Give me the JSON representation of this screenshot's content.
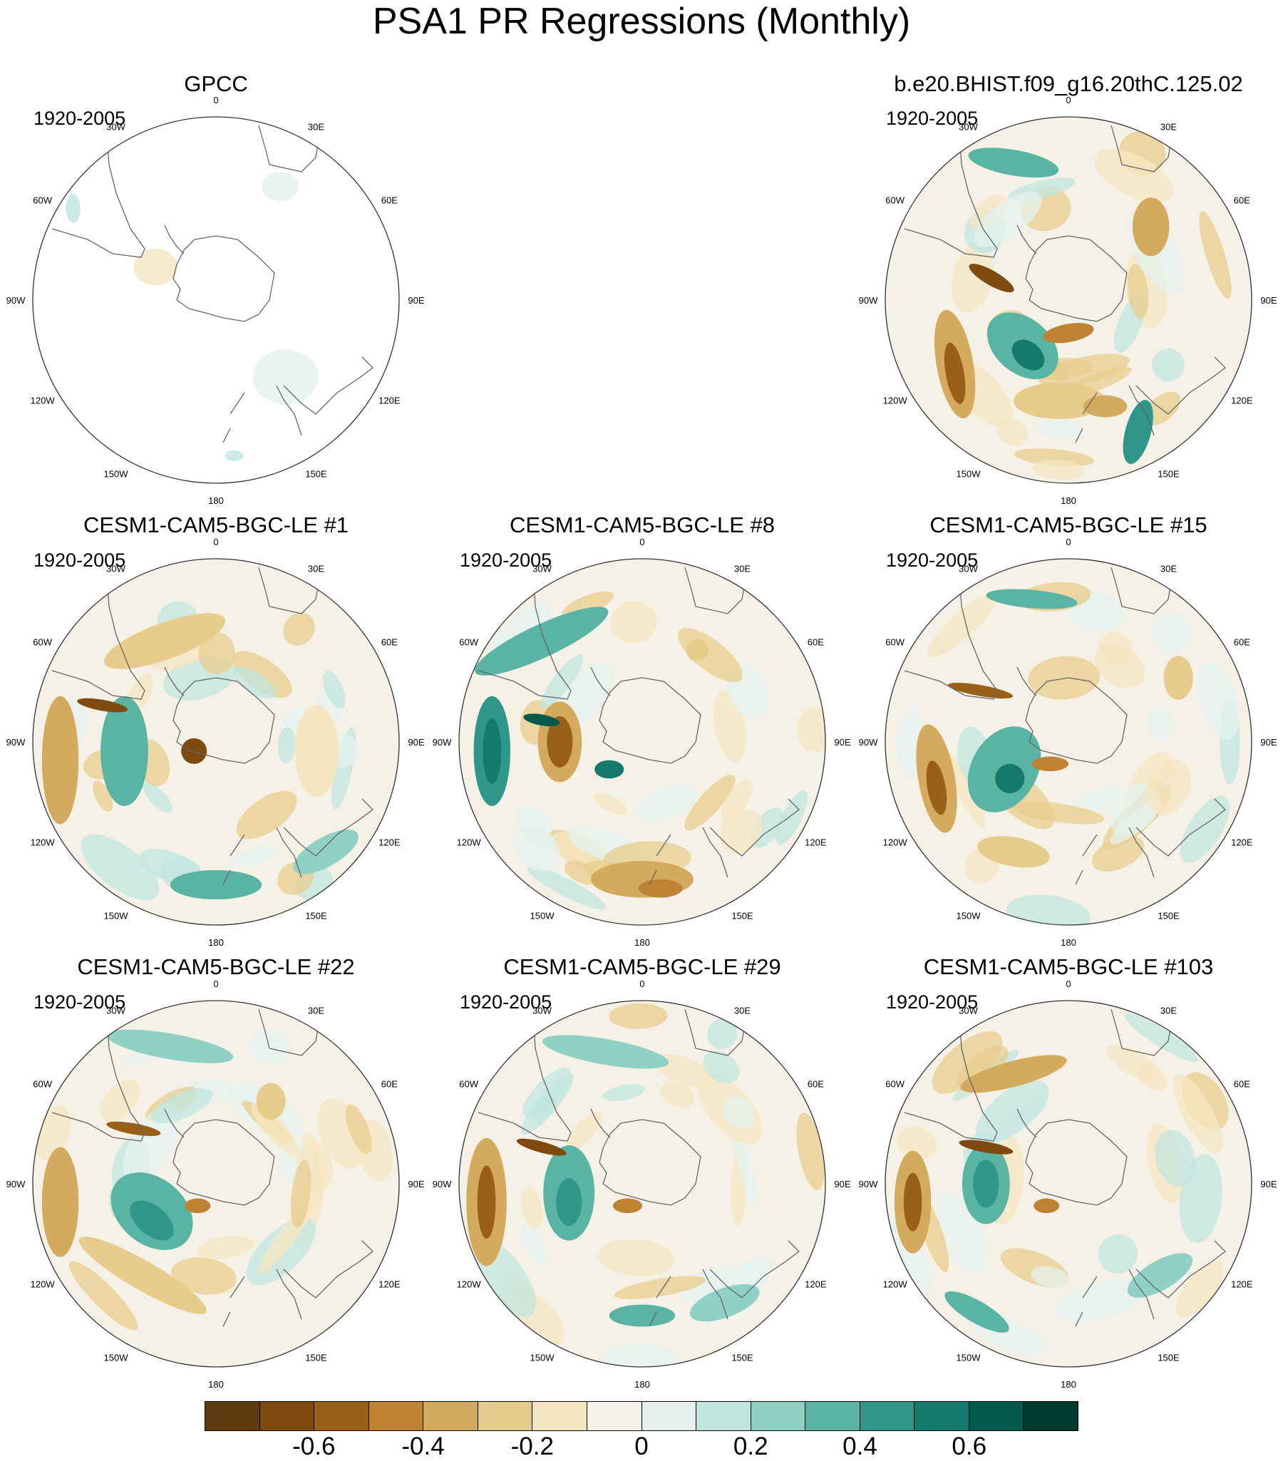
{
  "title": "PSA1 PR Regressions (Monthly)",
  "period": "1920-2005",
  "panels": [
    {
      "title": "GPCC",
      "kind": "obs"
    },
    {
      "title": "",
      "kind": "empty"
    },
    {
      "title": "b.e20.BHIST.f09_g16.20thC.125.02",
      "kind": "model"
    },
    {
      "title": "CESM1-CAM5-BGC-LE #1",
      "kind": "model"
    },
    {
      "title": "CESM1-CAM5-BGC-LE #8",
      "kind": "model"
    },
    {
      "title": "CESM1-CAM5-BGC-LE #15",
      "kind": "model"
    },
    {
      "title": "CESM1-CAM5-BGC-LE #22",
      "kind": "model"
    },
    {
      "title": "CESM1-CAM5-BGC-LE #29",
      "kind": "model"
    },
    {
      "title": "CESM1-CAM5-BGC-LE #103",
      "kind": "model"
    }
  ],
  "longitude_labels": [
    "0",
    "30E",
    "60E",
    "90E",
    "120E",
    "150E",
    "180",
    "150W",
    "120W",
    "90W",
    "60W",
    "30W"
  ],
  "colorbar": {
    "colors": [
      "#5e3a0e",
      "#7f4a10",
      "#9a5f18",
      "#bd8234",
      "#d4aa5e",
      "#e8cc8e",
      "#f5e6c2",
      "#f5f1e7",
      "#e4f1ee",
      "#c0e6df",
      "#8fd1c4",
      "#5ab4a4",
      "#2f968a",
      "#137a6c",
      "#02594c",
      "#013b30"
    ],
    "tick_labels": [
      "-0.6",
      "-0.4",
      "-0.2",
      "0",
      "0.2",
      "0.4",
      "0.6"
    ]
  }
}
